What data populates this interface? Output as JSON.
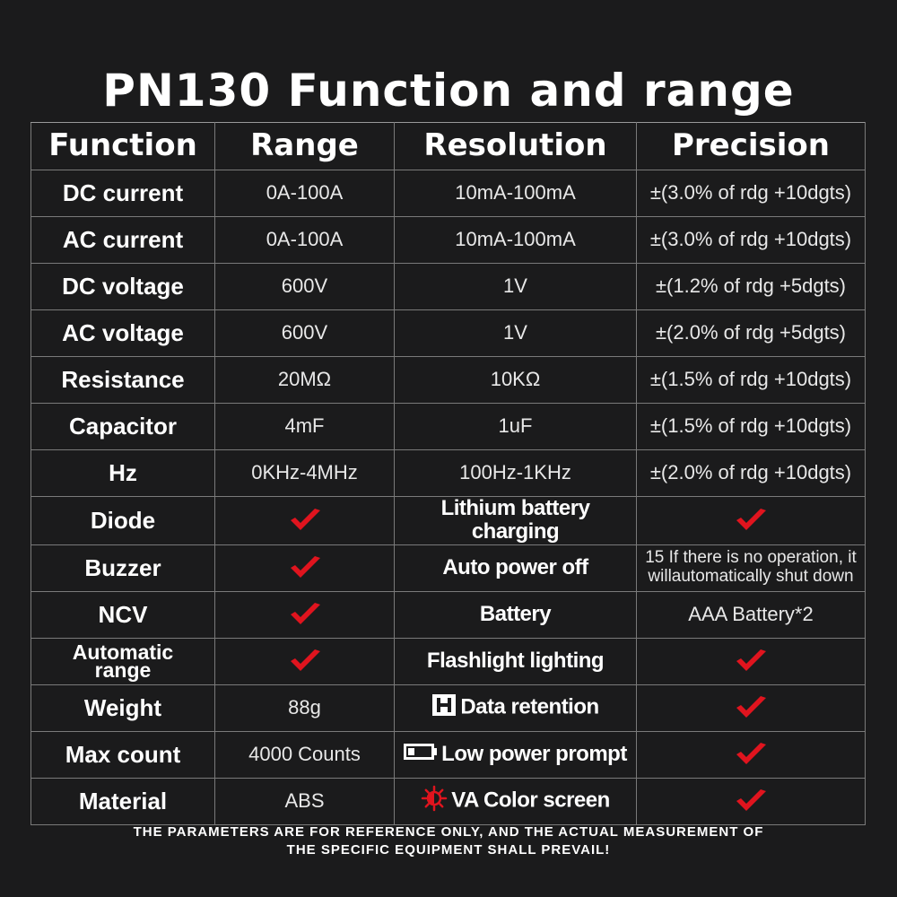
{
  "title": "PN130 Function and range",
  "accent_color": "#e0141e",
  "table": {
    "headers": [
      "Function",
      "Range",
      "Resolution",
      "Precision"
    ],
    "rows": [
      {
        "function": "DC current",
        "range": "0A-100A",
        "resolution": "10mA-100mA",
        "precision": "±(3.0% of rdg +10dgts)"
      },
      {
        "function": "AC current",
        "range": "0A-100A",
        "resolution": "10mA-100mA",
        "precision": "±(3.0% of rdg +10dgts)"
      },
      {
        "function": "DC voltage",
        "range": "600V",
        "resolution": "1V",
        "precision": "±(1.2% of rdg +5dgts)"
      },
      {
        "function": "AC voltage",
        "range": "600V",
        "resolution": "1V",
        "precision": "±(2.0% of rdg +5dgts)"
      },
      {
        "function": "Resistance",
        "range": "20MΩ",
        "resolution": "10KΩ",
        "precision": "±(1.5% of rdg +10dgts)"
      },
      {
        "function": "Capacitor",
        "range": "4mF",
        "resolution": "1uF",
        "precision": "±(1.5% of rdg +10dgts)"
      },
      {
        "function": "Hz",
        "range": "0KHz-4MHz",
        "resolution": "100Hz-1KHz",
        "precision": "±(2.0% of rdg +10dgts)"
      }
    ],
    "features": [
      {
        "function": "Diode",
        "range_check": true,
        "feature": "Lithium battery charging",
        "feature_icon": "",
        "value": "",
        "value_check": true
      },
      {
        "function": "Buzzer",
        "range_check": true,
        "feature": "Auto power off",
        "feature_icon": "",
        "value_line1": "15 If there is no operation, it",
        "value_line2": "willautomatically shut down",
        "value_check": false
      },
      {
        "function": "NCV",
        "range_check": true,
        "feature": "Battery",
        "feature_icon": "",
        "value": "AAA Battery*2",
        "value_check": false
      },
      {
        "function_line1": "Automatic",
        "function_line2": "range",
        "range_check": true,
        "feature": "Flashlight lighting",
        "feature_icon": "",
        "value": "",
        "value_check": true
      },
      {
        "function": "Weight",
        "range": "88g",
        "range_check": false,
        "feature": "Data retention",
        "feature_icon": "hold-icon",
        "value": "",
        "value_check": true
      },
      {
        "function": "Max count",
        "range": "4000 Counts",
        "range_check": false,
        "feature": "Low power prompt",
        "feature_icon": "battery-low-icon",
        "value": "",
        "value_check": true
      },
      {
        "function": "Material",
        "range": "ABS",
        "range_check": false,
        "feature": "VA Color screen",
        "feature_icon": "brightness-icon",
        "value": "",
        "value_check": true
      }
    ],
    "check_icon": "checkmark-icon"
  },
  "footer": {
    "line1": "THE PARAMETERS ARE FOR REFERENCE ONLY, AND THE ACTUAL MEASUREMENT OF",
    "line2": "THE SPECIFIC EQUIPMENT SHALL PREVAIL!"
  }
}
